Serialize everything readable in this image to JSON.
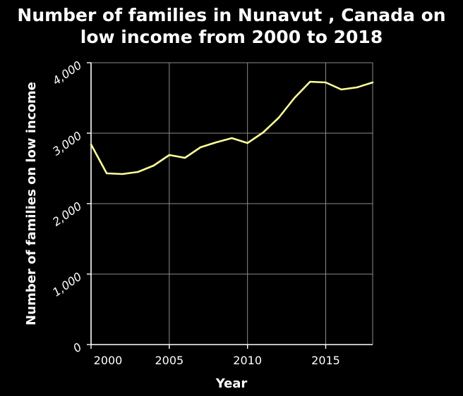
{
  "chart_data": {
    "type": "line",
    "title_lines": [
      "Number of families in Nunavut , Canada on",
      "low income from 2000 to 2018"
    ],
    "xlabel": "Year",
    "ylabel": "Number of families on low income",
    "xlim": [
      2000,
      2018
    ],
    "ylim": [
      0,
      4000
    ],
    "x_ticks": [
      2000,
      2005,
      2010,
      2015
    ],
    "y_ticks": [
      0,
      1000,
      2000,
      3000,
      4000
    ],
    "x_tick_labels": [
      "2000",
      "2005",
      "2010",
      "2015"
    ],
    "y_tick_labels": [
      "0",
      "1,000",
      "2,000",
      "3,000",
      "4,000"
    ],
    "grid": true,
    "series": [
      {
        "x": [
          2000,
          2001,
          2002,
          2003,
          2004,
          2005,
          2006,
          2007,
          2008,
          2009,
          2010,
          2011,
          2012,
          2013,
          2014,
          2015,
          2016,
          2017,
          2018
        ],
        "y": [
          2840,
          2430,
          2420,
          2450,
          2540,
          2690,
          2650,
          2800,
          2870,
          2930,
          2860,
          3010,
          3220,
          3500,
          3730,
          3720,
          3620,
          3650,
          3720
        ],
        "color": "#ffff99"
      }
    ]
  }
}
